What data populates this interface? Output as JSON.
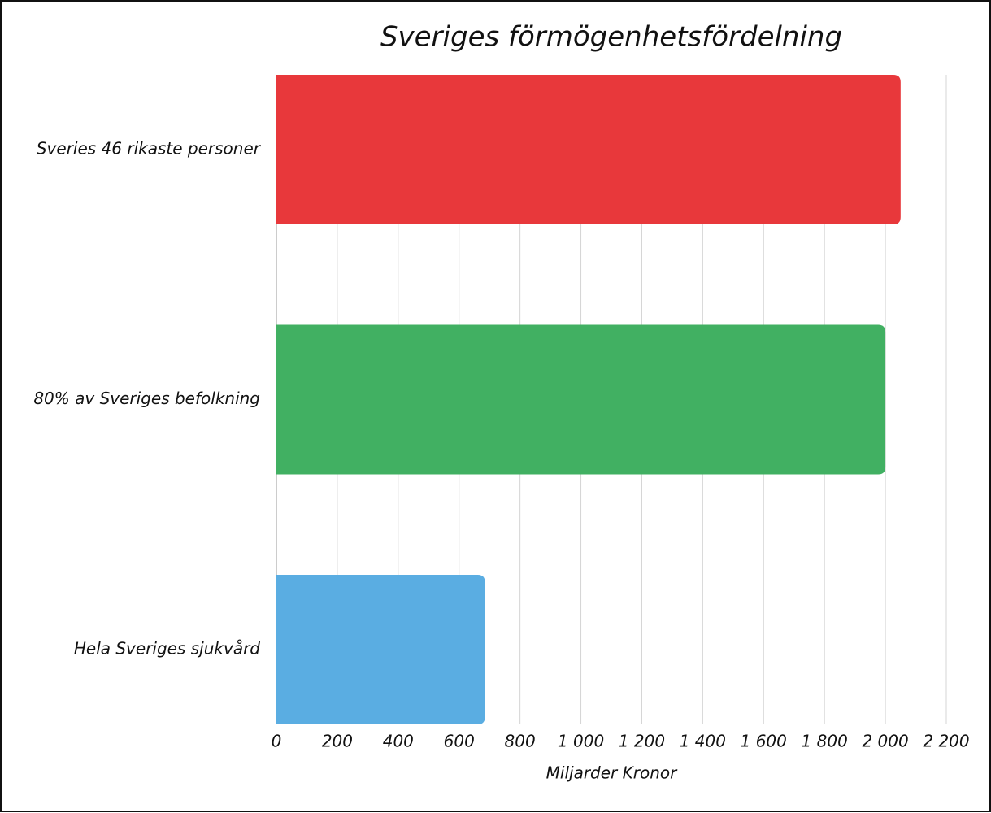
{
  "chart_data": {
    "type": "hbar",
    "title": "Sveriges förmögenhetsfördelning",
    "x_label": "Miljarder Kronor",
    "categories": [
      "Sveries 46 rikaste personer",
      "80% av Sveriges befolkning",
      "Hela Sveriges sjukvård"
    ],
    "values": [
      2050,
      2000,
      685
    ],
    "colors": [
      "#e8383b",
      "#41b062",
      "#5aade2"
    ],
    "xlim": [
      0,
      2200
    ],
    "xticks": [
      0,
      200,
      400,
      600,
      800,
      {
        "value": 1000,
        "label": "1 000"
      },
      {
        "value": 1200,
        "label": "1 200"
      },
      {
        "value": 1400,
        "label": "1 400"
      },
      {
        "value": 1600,
        "label": "1 600"
      },
      {
        "value": 1800,
        "label": "1 800"
      },
      {
        "value": 2000,
        "label": "2 000"
      },
      {
        "value": 2200,
        "label": "2 200"
      }
    ],
    "grid": true
  }
}
